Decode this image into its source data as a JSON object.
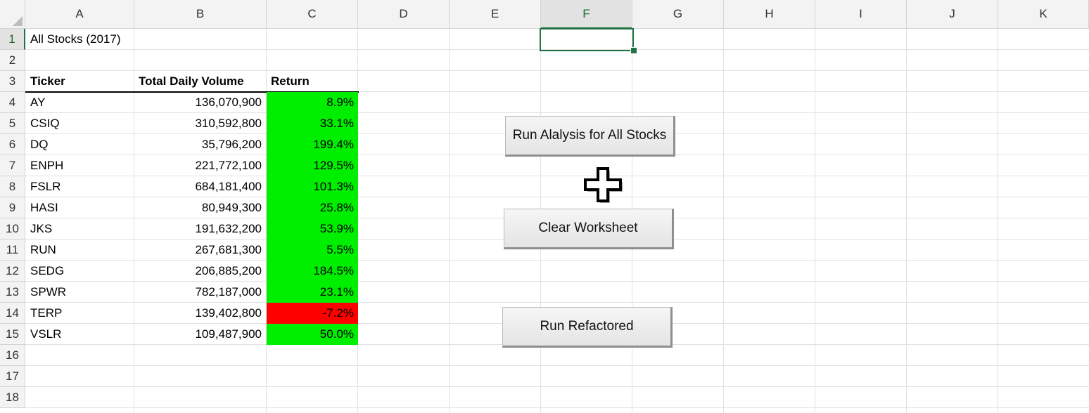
{
  "columns": [
    "A",
    "B",
    "C",
    "D",
    "E",
    "F",
    "G",
    "H",
    "I",
    "J",
    "K"
  ],
  "active_column": "F",
  "rows": [
    "1",
    "2",
    "3",
    "4",
    "5",
    "6",
    "7",
    "8",
    "9",
    "10",
    "11",
    "12",
    "13",
    "14",
    "15",
    "16",
    "17",
    "18"
  ],
  "active_row": "1",
  "sheet": {
    "title": "All Stocks (2017)",
    "headers": {
      "ticker": "Ticker",
      "volume": "Total Daily Volume",
      "return": "Return"
    },
    "data": [
      {
        "ticker": "AY",
        "volume": "136,070,900",
        "return": "8.9%",
        "status": "positive"
      },
      {
        "ticker": "CSIQ",
        "volume": "310,592,800",
        "return": "33.1%",
        "status": "positive"
      },
      {
        "ticker": "DQ",
        "volume": "35,796,200",
        "return": "199.4%",
        "status": "positive"
      },
      {
        "ticker": "ENPH",
        "volume": "221,772,100",
        "return": "129.5%",
        "status": "positive"
      },
      {
        "ticker": "FSLR",
        "volume": "684,181,400",
        "return": "101.3%",
        "status": "positive"
      },
      {
        "ticker": "HASI",
        "volume": "80,949,300",
        "return": "25.8%",
        "status": "positive"
      },
      {
        "ticker": "JKS",
        "volume": "191,632,200",
        "return": "53.9%",
        "status": "positive"
      },
      {
        "ticker": "RUN",
        "volume": "267,681,300",
        "return": "5.5%",
        "status": "positive"
      },
      {
        "ticker": "SEDG",
        "volume": "206,885,200",
        "return": "184.5%",
        "status": "positive"
      },
      {
        "ticker": "SPWR",
        "volume": "782,187,000",
        "return": "23.1%",
        "status": "positive"
      },
      {
        "ticker": "TERP",
        "volume": "139,402,800",
        "return": "-7.2%",
        "status": "negative"
      },
      {
        "ticker": "VSLR",
        "volume": "109,487,900",
        "return": "50.0%",
        "status": "positive"
      }
    ]
  },
  "colors": {
    "positive": "#00ee00",
    "negative": "#ff0000",
    "selection": "#217346"
  },
  "buttons": {
    "run_analysis": "Run Alalysis for All Stocks",
    "clear": "Clear Worksheet",
    "run_refactored": "Run Refactored"
  },
  "cursor_icon": "crosshair-plus-icon"
}
